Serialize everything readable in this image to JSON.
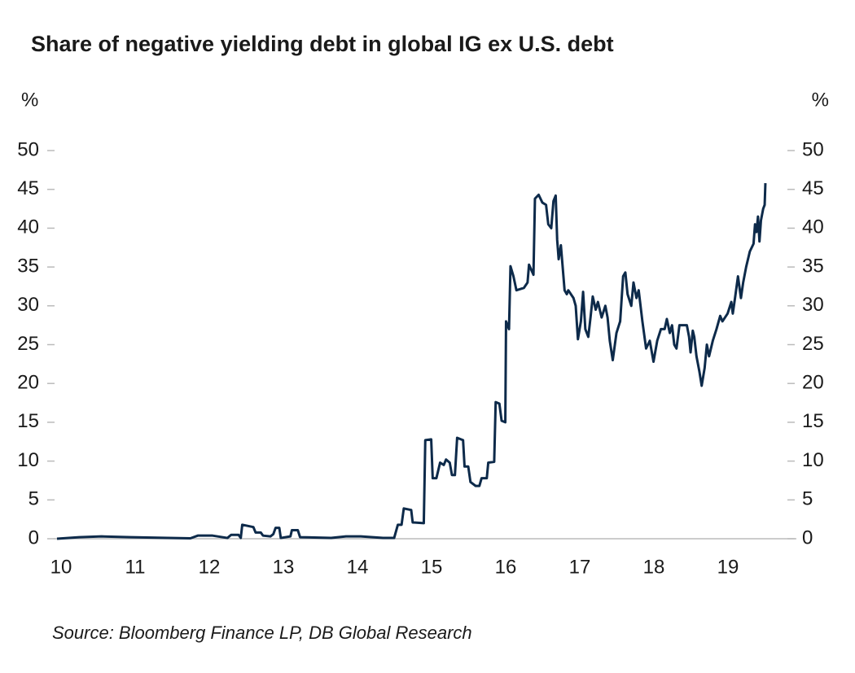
{
  "chart_data": {
    "type": "line",
    "title": "Share of negative yielding debt in global IG ex U.S. debt",
    "ylabel": "%",
    "y2label": "%",
    "source": "Source: Bloomberg Finance LP, DB Global Research",
    "xlim": [
      10,
      20
    ],
    "xticks": [
      10,
      11,
      12,
      13,
      14,
      15,
      16,
      17,
      18,
      19
    ],
    "ylim": [
      0,
      50
    ],
    "yticks": [
      0,
      5,
      10,
      15,
      20,
      25,
      30,
      35,
      40,
      45,
      50
    ],
    "y2lim": [
      0,
      50
    ],
    "y2ticks": [
      0,
      5,
      10,
      15,
      20,
      25,
      30,
      35,
      40,
      45,
      50
    ],
    "x": [
      10.0,
      10.3,
      10.6,
      11.0,
      11.5,
      11.8,
      11.9,
      12.1,
      12.3,
      12.35,
      12.45,
      12.48,
      12.5,
      12.65,
      12.68,
      12.75,
      12.78,
      12.88,
      12.92,
      12.95,
      13.0,
      13.02,
      13.15,
      13.17,
      13.25,
      13.28,
      13.7,
      13.9,
      14.1,
      14.4,
      14.55,
      14.6,
      14.65,
      14.68,
      14.78,
      14.8,
      14.95,
      14.97,
      15.05,
      15.07,
      15.12,
      15.17,
      15.22,
      15.25,
      15.3,
      15.33,
      15.37,
      15.4,
      15.48,
      15.5,
      15.55,
      15.58,
      15.65,
      15.7,
      15.73,
      15.8,
      15.82,
      15.9,
      15.92,
      15.97,
      16.0,
      16.05,
      16.06,
      16.1,
      16.12,
      16.16,
      16.2,
      16.3,
      16.35,
      16.37,
      16.43,
      16.45,
      16.5,
      16.55,
      16.6,
      16.63,
      16.67,
      16.7,
      16.73,
      16.75,
      16.77,
      16.8,
      16.85,
      16.88,
      16.9,
      16.97,
      17.0,
      17.03,
      17.07,
      17.1,
      17.13,
      17.17,
      17.2,
      17.23,
      17.27,
      17.3,
      17.35,
      17.4,
      17.43,
      17.46,
      17.5,
      17.55,
      17.6,
      17.64,
      17.67,
      17.7,
      17.75,
      17.78,
      17.82,
      17.85,
      17.9,
      17.95,
      18.0,
      18.05,
      18.1,
      18.15,
      18.2,
      18.23,
      18.27,
      18.3,
      18.33,
      18.36,
      18.4,
      18.44,
      18.5,
      18.53,
      18.55,
      18.58,
      18.6,
      18.63,
      18.67,
      18.7,
      18.74,
      18.77,
      18.8,
      18.85,
      18.9,
      18.95,
      18.98,
      19.05,
      19.1,
      19.12,
      19.15,
      19.19,
      19.23,
      19.26,
      19.3,
      19.35,
      19.4,
      19.42,
      19.44,
      19.46,
      19.48,
      19.5,
      19.53,
      19.55,
      19.56
    ],
    "series": [
      {
        "name": "Share of negative yielding debt",
        "color": "#0d2a4a",
        "values": [
          0,
          0.2,
          0.3,
          0.2,
          0.1,
          0.05,
          0.4,
          0.4,
          0.1,
          0.5,
          0.5,
          0.1,
          1.8,
          1.5,
          0.8,
          0.8,
          0.4,
          0.3,
          0.6,
          1.4,
          1.4,
          0.1,
          0.3,
          1.1,
          1.1,
          0.2,
          0.1,
          0.3,
          0.3,
          0.1,
          0.1,
          1.8,
          1.8,
          3.9,
          3.7,
          2.1,
          2.0,
          12.7,
          12.8,
          7.8,
          7.8,
          9.8,
          9.5,
          10.2,
          9.8,
          8.2,
          8.2,
          13.0,
          12.7,
          9.3,
          9.3,
          7.3,
          6.8,
          6.8,
          7.8,
          7.8,
          9.8,
          9.9,
          17.6,
          17.4,
          15.2,
          15.0,
          28.0,
          27.0,
          35.1,
          33.8,
          32.0,
          32.3,
          33.0,
          35.3,
          34.0,
          43.8,
          44.3,
          43.3,
          43.0,
          40.5,
          40.0,
          43.5,
          44.2,
          38.5,
          36.0,
          37.8,
          32.0,
          31.5,
          32.0,
          31.0,
          30.0,
          25.7,
          28.0,
          31.8,
          27.0,
          26.0,
          28.5,
          31.2,
          29.5,
          30.5,
          28.5,
          30.0,
          28.5,
          25.5,
          23.0,
          26.5,
          28.0,
          33.8,
          34.3,
          31.5,
          30.0,
          33.0,
          31.0,
          32.0,
          28.0,
          24.5,
          25.5,
          22.8,
          25.5,
          27.0,
          27.0,
          28.3,
          26.5,
          27.5,
          25.0,
          24.5,
          27.5,
          27.5,
          27.5,
          26.0,
          24.0,
          26.8,
          26.0,
          23.5,
          21.5,
          19.7,
          22.0,
          25.0,
          23.5,
          25.5,
          27.0,
          28.7,
          28.0,
          29.0,
          30.5,
          29.0,
          31.0,
          33.8,
          31.0,
          33.0,
          35.0,
          37.0,
          38.0,
          40.5,
          39.5,
          41.5,
          38.3,
          41.0,
          42.5,
          43.0,
          45.8
        ]
      }
    ]
  }
}
